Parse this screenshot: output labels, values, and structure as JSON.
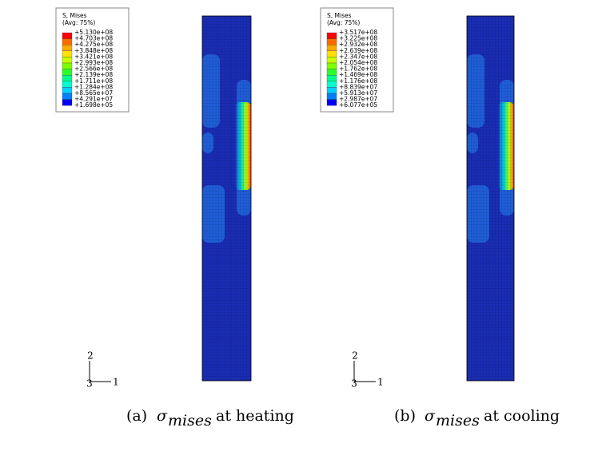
{
  "panels": [
    {
      "legend": {
        "title": "S, Mises",
        "subtitle": "(Avg: 75%)",
        "labels": [
          "+5.130e+08",
          "+4.703e+08",
          "+4.275e+08",
          "+3.848e+08",
          "+3.421e+08",
          "+2.993e+08",
          "+2.566e+08",
          "+2.139e+08",
          "+1.711e+08",
          "+1.284e+08",
          "+8.565e+07",
          "+4.291e+07",
          "+1.698e+05"
        ]
      },
      "triad": {
        "vertical": "2",
        "out": "3",
        "horizontal": "1"
      },
      "caption": {
        "label": "(a)",
        "symbol": "σ",
        "subscript": "mises",
        "text": "at heating"
      }
    },
    {
      "legend": {
        "title": "S, Mises",
        "subtitle": "(Avg: 75%)",
        "labels": [
          "+3.517e+08",
          "+3.225e+08",
          "+2.932e+08",
          "+2.639e+08",
          "+2.347e+08",
          "+2.054e+08",
          "+1.762e+08",
          "+1.469e+08",
          "+1.176e+08",
          "+8.839e+07",
          "+5.913e+07",
          "+2.987e+07",
          "+6.077e+05"
        ]
      },
      "triad": {
        "vertical": "2",
        "out": "3",
        "horizontal": "1"
      },
      "caption": {
        "label": "(b)",
        "symbol": "σ",
        "subscript": "mises",
        "text": "at cooling"
      }
    }
  ]
}
